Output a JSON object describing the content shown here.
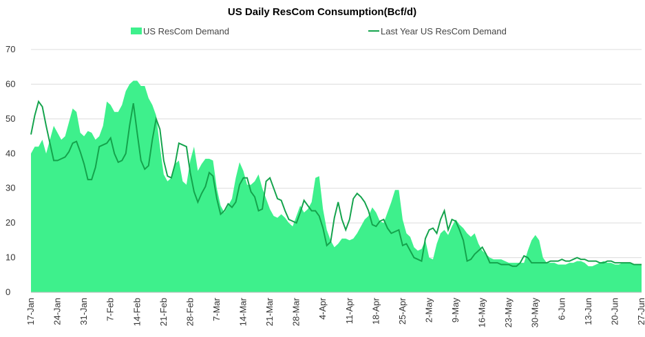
{
  "chart_data": {
    "type": "area_line",
    "title": "US Daily ResCom Consumption(Bcf/d)",
    "categories": [
      "17-Jan",
      null,
      null,
      null,
      null,
      null,
      null,
      "24-Jan",
      null,
      null,
      null,
      null,
      null,
      null,
      "31-Jan",
      null,
      null,
      null,
      null,
      null,
      null,
      "7-Feb",
      null,
      null,
      null,
      null,
      null,
      null,
      "14-Feb",
      null,
      null,
      null,
      null,
      null,
      null,
      "21-Feb",
      null,
      null,
      null,
      null,
      null,
      null,
      "28-Feb",
      null,
      null,
      null,
      null,
      null,
      null,
      "7-Mar",
      null,
      null,
      null,
      null,
      null,
      null,
      "14-Mar",
      null,
      null,
      null,
      null,
      null,
      null,
      "21-Mar",
      null,
      null,
      null,
      null,
      null,
      null,
      "28-Mar",
      null,
      null,
      null,
      null,
      null,
      null,
      "4-Apr",
      null,
      null,
      null,
      null,
      null,
      null,
      "11-Apr",
      null,
      null,
      null,
      null,
      null,
      null,
      "18-Apr",
      null,
      null,
      null,
      null,
      null,
      null,
      "25-Apr",
      null,
      null,
      null,
      null,
      null,
      null,
      "2-May",
      null,
      null,
      null,
      null,
      null,
      null,
      "9-May",
      null,
      null,
      null,
      null,
      null,
      null,
      "16-May",
      null,
      null,
      null,
      null,
      null,
      null,
      "23-May",
      null,
      null,
      null,
      null,
      null,
      null,
      "30-May",
      null,
      null,
      null,
      null,
      null,
      null,
      "6-Jun",
      null,
      null,
      null,
      null,
      null,
      null,
      "13-Jun",
      null,
      null,
      null,
      null,
      null,
      null,
      "20-Jun",
      null,
      null,
      null,
      null,
      null,
      null,
      "27-Jun"
    ],
    "series": [
      {
        "name": "US ResCom Demand",
        "kind": "area",
        "color": "#3ef08c",
        "values": [
          40,
          42,
          42,
          44,
          40,
          44,
          48,
          46,
          44,
          45,
          49,
          53,
          52,
          46,
          45,
          46.5,
          46,
          44,
          45,
          48,
          55,
          54,
          52,
          52,
          54,
          58,
          60,
          61,
          61,
          59.5,
          59.5,
          56,
          54,
          51,
          42,
          34,
          32,
          33,
          37,
          38,
          32,
          31,
          38,
          42,
          35,
          37,
          38.5,
          38.5,
          38,
          30,
          25,
          23,
          25,
          27,
          33,
          37.5,
          35,
          31,
          31,
          32,
          34,
          30,
          27,
          24,
          22,
          21.5,
          22.5,
          21.5,
          20,
          19,
          22,
          25,
          23,
          24,
          26,
          33,
          33.5,
          24,
          18,
          15,
          13,
          14,
          15.5,
          15.5,
          15,
          15.5,
          17,
          19,
          21,
          22,
          24.5,
          23,
          20.5,
          20,
          23,
          26,
          29.5,
          29.5,
          21,
          17,
          16,
          13,
          12,
          12.5,
          15,
          10,
          9.5,
          14,
          17,
          18,
          16.5,
          19,
          21,
          19.5,
          18.5,
          17,
          16,
          17,
          14,
          12,
          11,
          10,
          9.5,
          9.5,
          9.5,
          9,
          8.5,
          8.5,
          8.5,
          8.5,
          8.5,
          12,
          15,
          16.5,
          15,
          10,
          8.5,
          8.5,
          8.5,
          8,
          8,
          8,
          8.5,
          8.5,
          9,
          9,
          8.5,
          7.5,
          7.5,
          8,
          8.5,
          9,
          8.5,
          8.5,
          8,
          8,
          8.5,
          8.5,
          8.5,
          8,
          8,
          8
        ]
      },
      {
        "name": "Last Year US ResCom Demand",
        "kind": "line",
        "color": "#14a34c",
        "values": [
          45.5,
          51,
          55,
          53.5,
          48,
          43,
          38,
          38,
          38.5,
          39,
          40.5,
          43,
          43.5,
          40.5,
          37,
          32.5,
          32.5,
          36,
          42,
          42.5,
          43,
          44.5,
          40,
          37.5,
          38,
          40,
          48,
          54.5,
          46,
          38,
          35.5,
          36.5,
          44,
          50,
          47,
          38,
          33.5,
          33,
          37,
          43,
          42.5,
          42,
          34.5,
          29,
          26,
          28.5,
          30.5,
          34.5,
          33.5,
          27,
          22.5,
          23.5,
          25.5,
          24.5,
          26,
          31,
          33,
          33,
          29,
          27.5,
          23.5,
          24,
          32,
          33,
          30,
          27,
          26.5,
          23.5,
          21,
          20.5,
          20,
          23,
          26.5,
          25,
          23.5,
          23.5,
          22,
          18.5,
          13.5,
          14.5,
          21.5,
          26,
          21,
          18,
          21,
          27,
          28.5,
          27.5,
          26,
          23.5,
          19.5,
          19,
          20.5,
          21,
          18.5,
          17,
          17.5,
          18,
          13.5,
          14,
          12,
          10,
          9.5,
          9,
          15.5,
          18,
          18.5,
          17,
          21,
          23.5,
          18,
          21,
          20.5,
          18,
          15,
          9,
          9.5,
          11,
          12,
          13,
          11,
          8.5,
          8.5,
          8.5,
          8,
          8,
          8,
          7.5,
          7.5,
          8.5,
          10.5,
          10,
          8.5,
          8.5,
          8.5,
          8.5,
          8.5,
          9,
          9,
          9,
          9.5,
          9,
          9,
          9.5,
          10,
          9.5,
          9.5,
          9,
          9,
          9,
          8.5,
          8.5,
          9,
          9,
          8.5,
          8.5,
          8.5,
          8.5,
          8.5,
          8,
          8,
          8
        ]
      }
    ],
    "ylim": [
      0,
      70
    ],
    "yticks": [
      0,
      10,
      20,
      30,
      40,
      50,
      60,
      70
    ],
    "grid": true,
    "legend": "top"
  }
}
